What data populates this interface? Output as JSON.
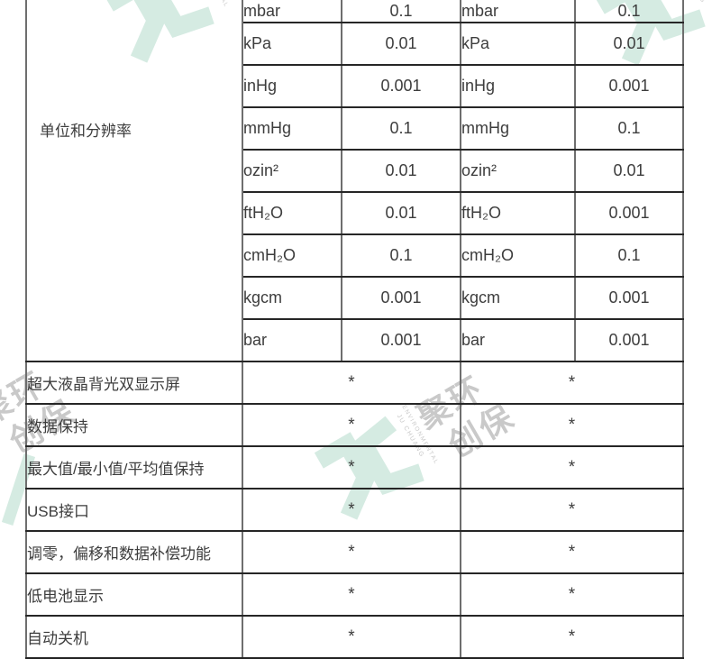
{
  "colors": {
    "watermark_green": "#d5ebe2",
    "watermark_gray": "#c9c9c9",
    "grid_horizontal": "#262626",
    "grid_vertical": "#6e6e6e",
    "text": "#3d3d3d"
  },
  "watermark": {
    "cn_line1": "聚环",
    "cn_line2": "创保",
    "en_line1": "JU CHUANG",
    "en_line2": "ENVIRONMENTAL"
  },
  "table": {
    "group_label": "单位和分辨率",
    "unit_rows": [
      {
        "unit_a": "mbar",
        "res_a": "0.1",
        "unit_b": "mbar",
        "res_b": "0.1"
      },
      {
        "unit_a": "kPa",
        "res_a": "0.01",
        "unit_b": "kPa",
        "res_b": "0.01"
      },
      {
        "unit_a": "inHg",
        "res_a": "0.001",
        "unit_b": "inHg",
        "res_b": "0.001"
      },
      {
        "unit_a": "mmHg",
        "res_a": "0.1",
        "unit_b": "mmHg",
        "res_b": "0.1"
      },
      {
        "unit_a": "ozin²",
        "res_a": "0.01",
        "unit_b": "ozin²",
        "res_b": "0.01"
      },
      {
        "unit_a": "ftH₂O",
        "res_a": "0.01",
        "unit_b": "ftH₂O",
        "res_b": "0.001"
      },
      {
        "unit_a": "cmH₂O",
        "res_a": "0.1",
        "unit_b": "cmH₂O",
        "res_b": "0.1"
      },
      {
        "unit_a": "kgcm",
        "res_a": "0.001",
        "unit_b": "kgcm",
        "res_b": "0.001"
      },
      {
        "unit_a": "bar",
        "res_a": "0.001",
        "unit_b": "bar",
        "res_b": "0.001"
      }
    ],
    "feature_rows": [
      {
        "label": "超大液晶背光双显示屏",
        "col_a": "*",
        "col_b": "*"
      },
      {
        "label": "数据保持",
        "col_a": "*",
        "col_b": "*"
      },
      {
        "label": "最大值/最小值/平均值保持",
        "col_a": "*",
        "col_b": "*"
      },
      {
        "label": "USB接口",
        "col_a": "*",
        "col_b": "*"
      },
      {
        "label": "调零，偏移和数据补偿功能",
        "col_a": "*",
        "col_b": "*"
      },
      {
        "label": "低电池显示",
        "col_a": "*",
        "col_b": "*"
      },
      {
        "label": "自动关机",
        "col_a": "*",
        "col_b": "*"
      }
    ]
  }
}
